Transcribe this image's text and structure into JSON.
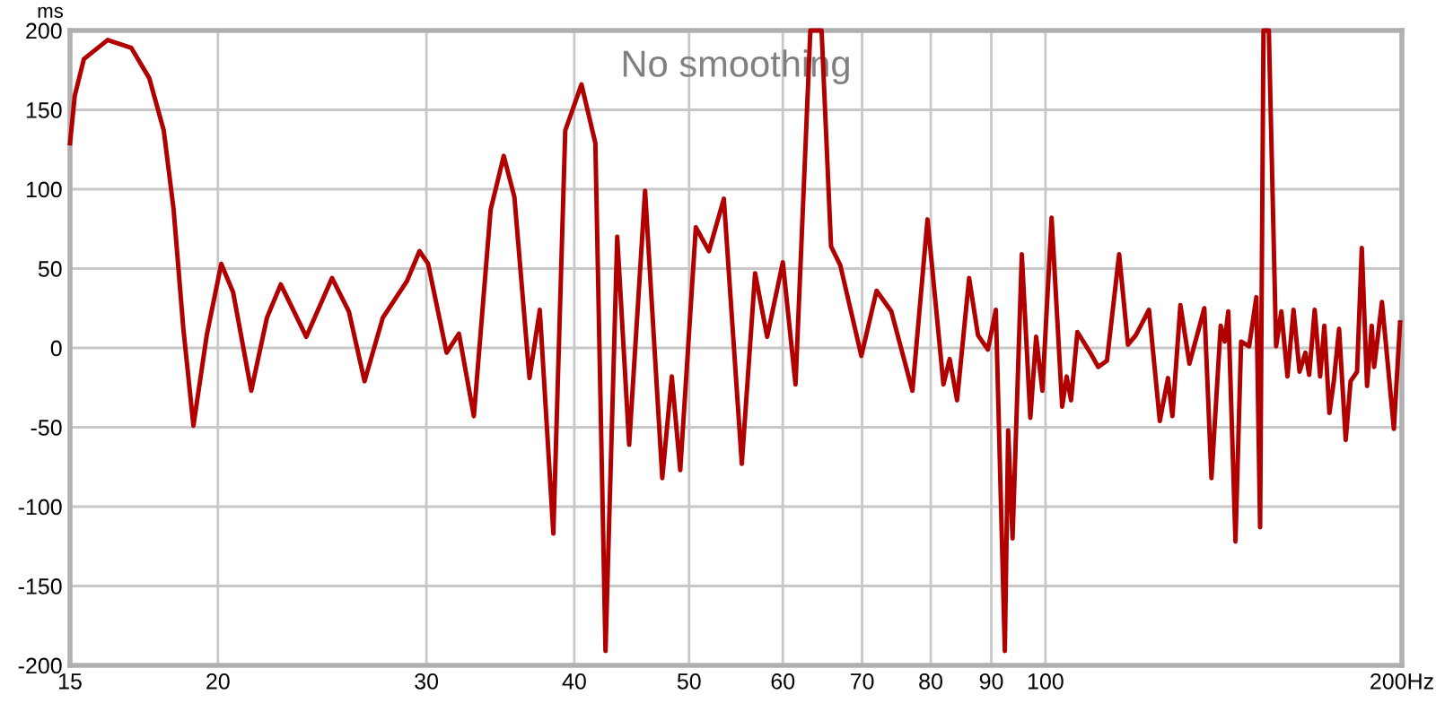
{
  "chart_data": {
    "type": "line",
    "title": "No smoothing",
    "ylabel": "ms",
    "log": "x",
    "grid": true,
    "marker": "none",
    "line_style": "solid",
    "xlim": [
      15,
      200
    ],
    "xticks": [
      15,
      20,
      30,
      40,
      50,
      60,
      70,
      80,
      90,
      100,
      {
        "value": 200,
        "label": "200Hz"
      }
    ],
    "ylim": [
      -200,
      200
    ],
    "yticks": [
      -200,
      -150,
      -100,
      -50,
      0,
      50,
      100,
      150,
      200
    ],
    "series": [
      {
        "color": "#b00000",
        "x": [
          15,
          15.14,
          15.41,
          16.14,
          16.9,
          17.5,
          18.0,
          18.35,
          18.7,
          19.07,
          19.57,
          20.13,
          20.6,
          21.34,
          22.0,
          22.6,
          23.75,
          24.97,
          25.8,
          26.6,
          27.56,
          28.88,
          29.6,
          30.1,
          31.2,
          31.96,
          32.9,
          33.99,
          34.87,
          35.6,
          36.66,
          37.4,
          38.4,
          39.3,
          40.56,
          41.67,
          42.5,
          43.48,
          44.5,
          45.9,
          47.46,
          48.35,
          49.15,
          50.66,
          51.97,
          53.5,
          55.4,
          56.85,
          58.2,
          60.0,
          61.5,
          63.3,
          64.7,
          65.9,
          67.1,
          69.9,
          72.0,
          74.1,
          77.2,
          79.5,
          82.0,
          83.0,
          84.2,
          86.2,
          87.7,
          89.4,
          90.8,
          92.4,
          93.0,
          93.8,
          95.5,
          97.1,
          98.2,
          99.4,
          101.2,
          103.3,
          104.2,
          105.1,
          106.4,
          109.1,
          110.8,
          112.7,
          115.4,
          117.4,
          119.2,
          122.3,
          124.9,
          126.9,
          128.0,
          130.0,
          132.3,
          136.2,
          138.1,
          140.6,
          141.7,
          142.7,
          144.7,
          146.3,
          148.6,
          150.7,
          151.8,
          152.8,
          154.4,
          156.6,
          158.2,
          160.1,
          162.0,
          163.9,
          165.8,
          167.0,
          168.8,
          170.6,
          172.0,
          173.7,
          175.2,
          177.0,
          179.3,
          181.0,
          183.3,
          185.0,
          186.9,
          188.6,
          189.5,
          192.4,
          196.9,
          199.3
        ],
        "values": [
          129,
          159,
          182,
          194,
          189,
          170,
          137,
          87,
          12,
          -49,
          8,
          53,
          35,
          -27,
          19,
          40,
          7,
          44,
          23,
          -21,
          19,
          42,
          61,
          53,
          -3,
          9,
          -43,
          87,
          121,
          95,
          -19,
          24,
          -117,
          137,
          166,
          129,
          -191,
          70,
          -61,
          99,
          -82,
          -18,
          -77,
          76,
          61,
          94,
          -73,
          47,
          7,
          54,
          -23,
          200,
          200,
          64,
          52,
          -5,
          36,
          23,
          -27,
          81,
          -23,
          -7,
          -33,
          44,
          8,
          -1,
          24,
          -191,
          -52,
          -120,
          59,
          -44,
          7,
          -27,
          82,
          -37,
          -18,
          -33,
          10,
          -3,
          -12,
          -8,
          59,
          2,
          8,
          24,
          -46,
          -19,
          -43,
          27,
          -10,
          25,
          -82,
          14,
          4,
          23,
          -122,
          4,
          1,
          32,
          -113,
          200,
          200,
          1,
          23,
          -18,
          24,
          -15,
          -3,
          -17,
          24,
          -18,
          14,
          -41,
          -21,
          12,
          -58,
          -21,
          -15,
          63,
          -24,
          14,
          -12,
          29,
          -51,
          16
        ]
      }
    ]
  }
}
